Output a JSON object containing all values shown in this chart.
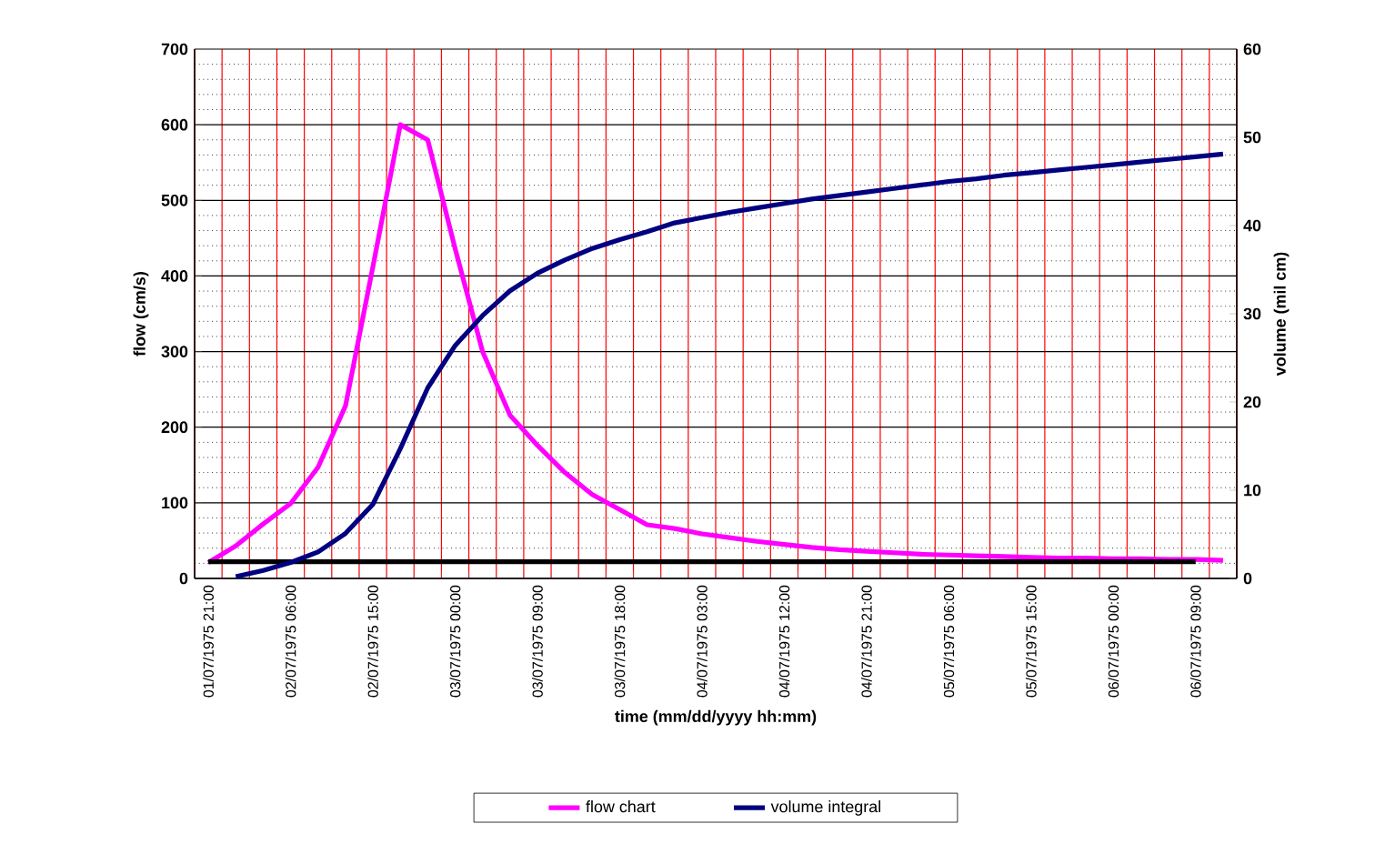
{
  "chart_data": {
    "type": "line",
    "xlabel": "time (mm/dd/yyyy hh:mm)",
    "ylabel": "flow (cm/s)",
    "y2label": "volume (mil cm)",
    "categories": [
      "01/07/1975 21:00",
      null,
      null,
      "02/07/1975 06:00",
      null,
      null,
      "02/07/1975 15:00",
      null,
      null,
      "03/07/1975 00:00",
      null,
      null,
      "03/07/1975 09:00",
      null,
      null,
      "03/07/1975 18:00",
      null,
      null,
      "04/07/1975 03:00",
      null,
      null,
      "04/07/1975 12:00",
      null,
      null,
      "04/07/1975 21:00",
      null,
      null,
      "05/07/1975 06:00",
      null,
      null,
      "05/07/1975 15:00",
      null,
      null,
      "06/07/1975 00:00",
      null,
      null,
      "06/07/1975 09:00",
      null
    ],
    "series": [
      {
        "name": "flow chart",
        "color": "#ff00ff",
        "values": [
          21,
          43,
          72,
          99,
          147,
          228,
          412,
          600,
          580,
          436,
          300,
          216,
          176,
          140,
          111,
          91,
          71,
          66,
          59,
          54,
          49,
          45,
          41,
          38,
          36,
          34,
          32,
          31,
          30,
          29,
          28,
          27,
          27,
          26,
          26,
          25,
          25,
          24
        ]
      },
      {
        "name": "volume integral",
        "color": "#000080",
        "axis": "y2",
        "values": [
          null,
          0.2,
          0.9,
          1.8,
          3.0,
          5.1,
          8.4,
          14.7,
          21.6,
          26.4,
          29.8,
          32.6,
          34.6,
          36.1,
          37.4,
          38.4,
          39.3,
          40.3,
          40.9,
          41.5,
          42.0,
          42.5,
          43.0,
          43.4,
          43.8,
          44.2,
          44.6,
          45.0,
          45.3,
          45.7,
          46.0,
          46.3,
          46.6,
          46.9,
          47.2,
          47.5,
          47.8,
          48.1
        ]
      },
      {
        "color": "#000000",
        "values": [
          22,
          22,
          22,
          22,
          22,
          22,
          22,
          22,
          22,
          22,
          22,
          22,
          22,
          22,
          22,
          22,
          22,
          22,
          22,
          22,
          22,
          22,
          22,
          22,
          22,
          22,
          22,
          22,
          22,
          22,
          22,
          22,
          22,
          22,
          22,
          22,
          22,
          null
        ]
      }
    ],
    "ylim": [
      0,
      700
    ],
    "yticks": [
      0,
      100,
      200,
      300,
      400,
      500,
      600,
      700
    ],
    "y2lim": [
      0,
      60
    ],
    "y2ticks": [
      0,
      10,
      20,
      30,
      40,
      50,
      60
    ],
    "grid": true,
    "legend": "bottom",
    "marker": "none",
    "line_style": "solid"
  }
}
